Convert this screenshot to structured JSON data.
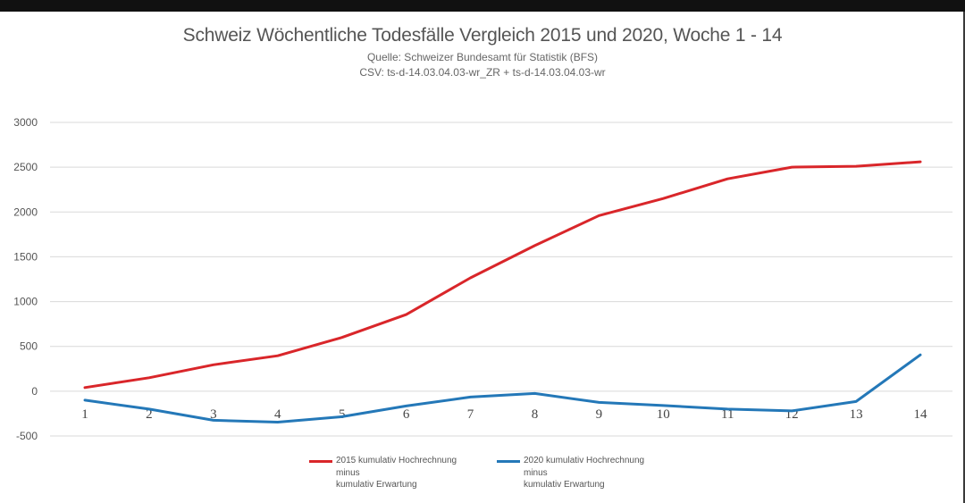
{
  "chart_data": {
    "type": "line",
    "title": "Schweiz Wöchentliche Todesfälle Vergleich 2015 und 2020, Woche 1 - 14",
    "subtitle": "Quelle: Schweizer Bundesamt für Statistik (BFS)",
    "source_csv": "CSV:  ts-d-14.03.04.03-wr_ZR + ts-d-14.03.04.03-wr",
    "x": [
      1,
      2,
      3,
      4,
      5,
      6,
      7,
      8,
      9,
      10,
      11,
      12,
      13,
      14
    ],
    "y_ticks": [
      3000,
      2500,
      2000,
      1500,
      1000,
      500,
      0,
      -500
    ],
    "ylim": [
      -500,
      3000
    ],
    "grid": true,
    "legend_position": "bottom",
    "series": [
      {
        "name": "2015 kumulativ Hochrechnung\nminus\nkumulativ Erwartung",
        "color": "#d9262a",
        "values": [
          40,
          150,
          295,
          395,
          600,
          855,
          1265,
          1625,
          1960,
          2150,
          2370,
          2500,
          2510,
          2560
        ]
      },
      {
        "name": "2020 kumulativ Hochrechnung\nminus\nkumulativ Erwartung",
        "color": "#2478b8",
        "values": [
          -100,
          -200,
          -325,
          -345,
          -285,
          -165,
          -65,
          -25,
          -125,
          -160,
          -200,
          -220,
          -115,
          405
        ]
      }
    ]
  }
}
